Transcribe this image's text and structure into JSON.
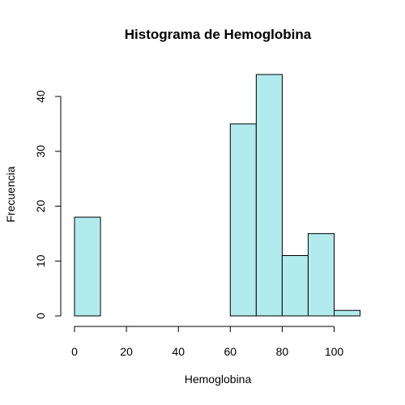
{
  "chart_data": {
    "type": "bar",
    "title": "Histograma de Hemoglobina",
    "xlabel": "Hemoglobina",
    "ylabel": "Frecuencia",
    "bin_edges": [
      0,
      10,
      20,
      30,
      40,
      50,
      60,
      70,
      80,
      90,
      100,
      110
    ],
    "values": [
      18,
      0,
      0,
      0,
      0,
      0,
      35,
      44,
      11,
      15,
      1
    ],
    "xlim": [
      0,
      110
    ],
    "ylim": [
      0,
      44
    ],
    "x_ticks": [
      0,
      20,
      40,
      60,
      80,
      100
    ],
    "y_ticks": [
      0,
      10,
      20,
      30,
      40
    ],
    "bar_color": "#b2ebee",
    "grid": false,
    "legend": "none"
  }
}
